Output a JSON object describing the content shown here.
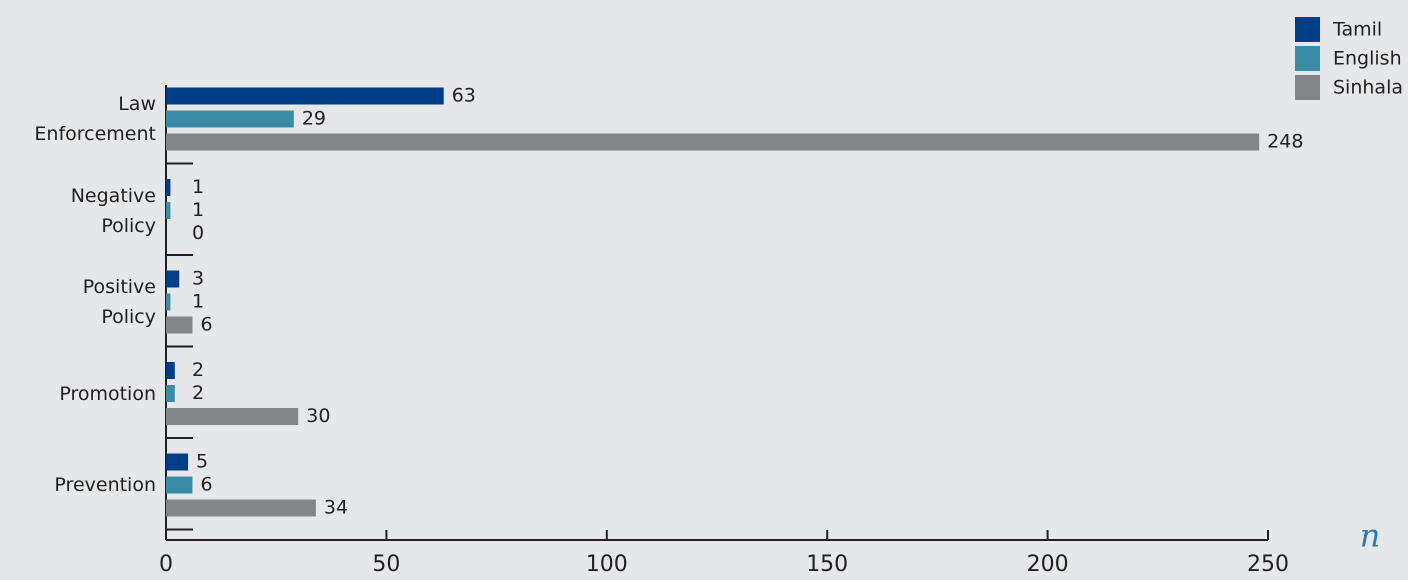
{
  "chart_data": {
    "type": "hbar",
    "categories": [
      "Law Enforcement",
      "Negative Policy",
      "Positive Policy",
      "Promotion",
      "Prevention"
    ],
    "series": [
      {
        "name": "Tamil",
        "color": "#003f87",
        "values": [
          63,
          1,
          3,
          2,
          5
        ]
      },
      {
        "name": "English",
        "color": "#3a8ca6",
        "values": [
          29,
          1,
          1,
          2,
          6
        ]
      },
      {
        "name": "Sinhala",
        "color": "#848587",
        "values": [
          248,
          0,
          6,
          30,
          34
        ]
      }
    ],
    "xlim": [
      0,
      250
    ],
    "xticks": [
      0,
      50,
      100,
      150,
      200,
      250
    ],
    "xlabel": "n",
    "legend": "top-right"
  }
}
